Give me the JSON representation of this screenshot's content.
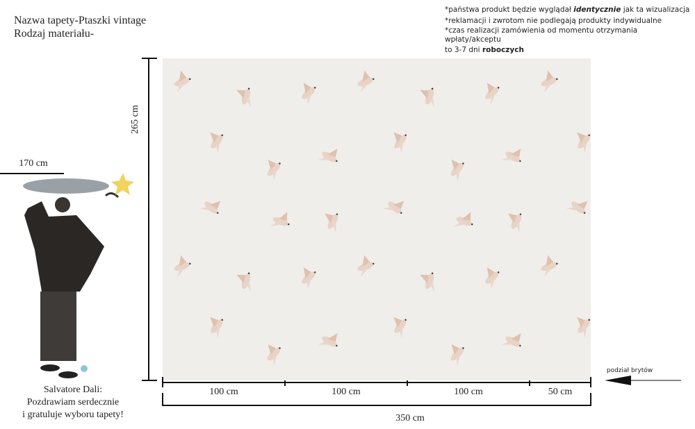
{
  "header": {
    "name": "Nazwa tapety-Ptaszki vintage",
    "material": "Rodzaj materiału-"
  },
  "notes": [
    {
      "before": "*państwa produkt będzie wyglądał ",
      "bold": "identycznie",
      "after": " jak ta wizualizacja"
    },
    {
      "text": "*reklamacji i zwrotom nie podlegają produkty indywidualne"
    },
    {
      "text": "*czas realizacji zamówienia od momentu otrzymania wpłaty/akceptu"
    },
    {
      "before": "to 3-7 dni ",
      "bold": "roboczych"
    }
  ],
  "dimensions": {
    "height": "265 cm",
    "person_height": "170 cm",
    "segments": [
      "100 cm",
      "100 cm",
      "100 cm",
      "50 cm"
    ],
    "total_width": "350 cm",
    "split_label": "podział brytów"
  },
  "caption": [
    "Salvatore Dali:",
    "Pozdrawiam serdecznie",
    "i gratuluje wyboru tapety!"
  ]
}
